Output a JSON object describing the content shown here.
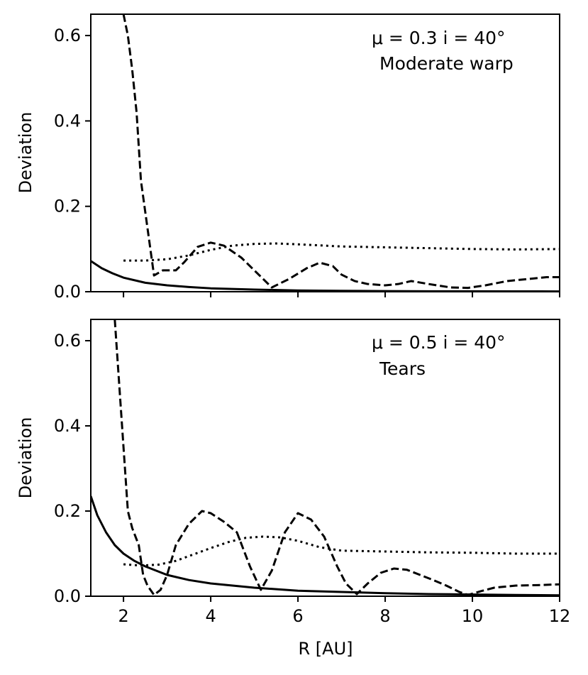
{
  "chart_data": [
    {
      "type": "line",
      "annotation_line1": "μ = 0.3  i = 40°",
      "annotation_line2": "Moderate warp",
      "ylabel": "Deviation",
      "xlabel": "",
      "xlim": [
        1.25,
        12
      ],
      "ylim": [
        0,
        0.65
      ],
      "xticks": [
        2,
        4,
        6,
        8,
        10,
        12
      ],
      "yticks": [
        0.0,
        0.2,
        0.4,
        0.6
      ],
      "ytick_labels": [
        "0.0",
        "0.2",
        "0.4",
        "0.6"
      ],
      "xtick_labels": [],
      "series": [
        {
          "name": "solid",
          "style": "solid",
          "x": [
            1.25,
            1.5,
            1.75,
            2.0,
            2.5,
            3.0,
            3.5,
            4.0,
            5.0,
            6.0,
            7.0,
            8.0,
            9.0,
            10.0,
            11.0,
            12.0
          ],
          "y": [
            0.072,
            0.055,
            0.043,
            0.033,
            0.021,
            0.015,
            0.011,
            0.008,
            0.005,
            0.003,
            0.002,
            0.0015,
            0.001,
            0.001,
            0.0008,
            0.0007
          ]
        },
        {
          "name": "dashed",
          "style": "dashed",
          "x": [
            2.0,
            2.1,
            2.2,
            2.3,
            2.4,
            2.7,
            2.9,
            3.2,
            3.4,
            3.7,
            4.0,
            4.3,
            4.7,
            5.0,
            5.4,
            5.8,
            6.2,
            6.5,
            6.8,
            7.0,
            7.3,
            7.6,
            8.0,
            8.3,
            8.6,
            9.0,
            9.5,
            9.9,
            10.3,
            10.8,
            11.3,
            11.7,
            12.0
          ],
          "y": [
            0.65,
            0.6,
            0.52,
            0.42,
            0.26,
            0.038,
            0.05,
            0.05,
            0.07,
            0.105,
            0.115,
            0.108,
            0.08,
            0.05,
            0.01,
            0.03,
            0.055,
            0.068,
            0.06,
            0.04,
            0.025,
            0.018,
            0.015,
            0.018,
            0.025,
            0.018,
            0.01,
            0.009,
            0.015,
            0.025,
            0.03,
            0.034,
            0.034
          ]
        },
        {
          "name": "dotted",
          "style": "dotted",
          "x": [
            2.0,
            2.5,
            3.0,
            3.5,
            4.0,
            4.5,
            5.0,
            5.5,
            6.0,
            7.0,
            8.0,
            9.0,
            10.0,
            11.0,
            12.0
          ],
          "y": [
            0.073,
            0.073,
            0.076,
            0.085,
            0.098,
            0.108,
            0.112,
            0.113,
            0.111,
            0.106,
            0.104,
            0.102,
            0.1,
            0.099,
            0.1
          ]
        }
      ]
    },
    {
      "type": "line",
      "annotation_line1": "μ = 0.5  i = 40°",
      "annotation_line2": "Tears",
      "ylabel": "Deviation",
      "xlabel": "R [AU]",
      "xlim": [
        1.25,
        12
      ],
      "ylim": [
        0,
        0.65
      ],
      "xticks": [
        2,
        4,
        6,
        8,
        10,
        12
      ],
      "yticks": [
        0.0,
        0.2,
        0.4,
        0.6
      ],
      "ytick_labels": [
        "0.0",
        "0.2",
        "0.4",
        "0.6"
      ],
      "xtick_labels": [
        "2",
        "4",
        "6",
        "8",
        "10",
        "12"
      ],
      "series": [
        {
          "name": "solid",
          "style": "solid",
          "x": [
            1.25,
            1.4,
            1.6,
            1.8,
            2.0,
            2.25,
            2.5,
            2.75,
            3.0,
            3.5,
            4.0,
            5.0,
            6.0,
            7.0,
            8.0,
            9.0,
            10.0,
            11.0,
            12.0
          ],
          "y": [
            0.235,
            0.19,
            0.15,
            0.12,
            0.1,
            0.083,
            0.07,
            0.06,
            0.05,
            0.038,
            0.03,
            0.02,
            0.013,
            0.01,
            0.007,
            0.005,
            0.004,
            0.003,
            0.002
          ]
        },
        {
          "name": "dashed",
          "style": "dashed",
          "x": [
            1.8,
            1.9,
            2.0,
            2.1,
            2.2,
            2.35,
            2.45,
            2.55,
            2.7,
            2.85,
            3.0,
            3.2,
            3.5,
            3.8,
            4.0,
            4.3,
            4.6,
            4.9,
            5.15,
            5.4,
            5.7,
            6.0,
            6.3,
            6.6,
            6.9,
            7.1,
            7.35,
            7.6,
            7.9,
            8.2,
            8.5,
            8.8,
            9.1,
            9.4,
            9.7,
            9.9,
            10.2,
            10.5,
            11.0,
            11.5,
            12.0
          ],
          "y": [
            0.65,
            0.5,
            0.35,
            0.2,
            0.16,
            0.12,
            0.05,
            0.025,
            0.003,
            0.015,
            0.05,
            0.12,
            0.17,
            0.2,
            0.195,
            0.175,
            0.15,
            0.07,
            0.015,
            0.06,
            0.15,
            0.195,
            0.18,
            0.14,
            0.07,
            0.03,
            0.005,
            0.03,
            0.055,
            0.065,
            0.062,
            0.05,
            0.038,
            0.025,
            0.01,
            0.003,
            0.012,
            0.02,
            0.025,
            0.026,
            0.028
          ]
        },
        {
          "name": "dotted",
          "style": "dotted",
          "x": [
            2.0,
            2.4,
            2.8,
            3.2,
            3.6,
            4.0,
            4.4,
            4.8,
            5.2,
            5.6,
            6.0,
            6.5,
            7.0,
            8.0,
            9.0,
            10.0,
            11.0,
            12.0
          ],
          "y": [
            0.075,
            0.072,
            0.074,
            0.083,
            0.098,
            0.113,
            0.127,
            0.137,
            0.14,
            0.138,
            0.13,
            0.115,
            0.107,
            0.105,
            0.103,
            0.102,
            0.1,
            0.1
          ]
        }
      ]
    }
  ]
}
